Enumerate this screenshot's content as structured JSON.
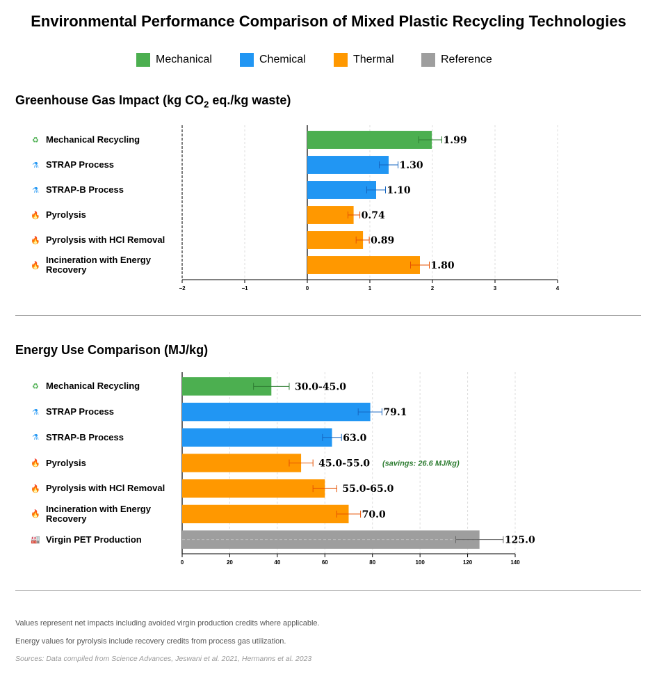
{
  "title": "Environmental Performance Comparison of Mixed Plastic Recycling Technologies",
  "legend": [
    {
      "label": "Mechanical",
      "color": "#4caf50"
    },
    {
      "label": "Chemical",
      "color": "#2196f3"
    },
    {
      "label": "Thermal",
      "color": "#ff9800"
    },
    {
      "label": "Reference",
      "color": "#9e9e9e"
    }
  ],
  "icons": {
    "mechanical": {
      "name": "recycle-icon",
      "glyph": "♻",
      "color": "#4caf50"
    },
    "chemical": {
      "name": "flask-icon",
      "glyph": "⚗",
      "color": "#2196f3"
    },
    "thermal": {
      "name": "flame-icon",
      "glyph": "🔥",
      "color": "#ff9800"
    },
    "reference": {
      "name": "factory-icon",
      "glyph": "🏭",
      "color": "#888888"
    }
  },
  "ghg": {
    "title_main": "Greenhouse Gas Impact (kg CO",
    "title_sub": "2",
    "title_end": " eq./kg waste)"
  },
  "energy": {
    "title": "Energy Use Comparison (MJ/kg)"
  },
  "notes": [
    "Values represent net impacts including avoided virgin production credits where applicable.",
    "Energy values for pyrolysis include recovery credits from process gas utilization."
  ],
  "source": "Sources: Data compiled from Science Advances, Jeswani et al. 2021, Hermanns et al. 2023",
  "chart_data": [
    {
      "type": "bar",
      "orientation": "horizontal",
      "title": "Greenhouse Gas Impact (kg CO2 eq./kg waste)",
      "categories": [
        "Mechanical Recycling",
        "STRAP Process",
        "STRAP-B Process",
        "Pyrolysis",
        "Pyrolysis with HCl Removal",
        "Incineration with Energy Recovery"
      ],
      "groups": [
        "mechanical",
        "chemical",
        "chemical",
        "thermal",
        "thermal",
        "thermal"
      ],
      "values": [
        1.99,
        1.3,
        1.1,
        0.74,
        0.89,
        1.8
      ],
      "error_low": [
        1.78,
        1.15,
        0.95,
        0.65,
        0.78,
        1.65
      ],
      "error_high": [
        2.15,
        1.45,
        1.25,
        0.84,
        0.99,
        1.95
      ],
      "value_labels": [
        "1.99",
        "1.30",
        "1.10",
        "0.74",
        "0.89",
        "1.80"
      ],
      "xlim": [
        -2,
        4
      ],
      "xticks": [
        -2,
        -1,
        0,
        1,
        2,
        3,
        4
      ],
      "xtick_labels": [
        "−2",
        "−1",
        "0",
        "1",
        "2",
        "3",
        "4"
      ],
      "grid": true
    },
    {
      "type": "bar",
      "orientation": "horizontal",
      "title": "Energy Use Comparison (MJ/kg)",
      "categories": [
        "Mechanical Recycling",
        "STRAP Process",
        "STRAP-B Process",
        "Pyrolysis",
        "Pyrolysis with HCl Removal",
        "Incineration with Energy Recovery",
        "Virgin PET Production"
      ],
      "groups": [
        "mechanical",
        "chemical",
        "chemical",
        "thermal",
        "thermal",
        "thermal",
        "reference"
      ],
      "values": [
        37.5,
        79.1,
        63.0,
        50.0,
        60.0,
        70.0,
        125.0
      ],
      "error_low": [
        30,
        74,
        59,
        45,
        55,
        65,
        115
      ],
      "error_high": [
        45,
        84,
        67,
        55,
        65,
        75,
        135
      ],
      "value_labels": [
        "30.0-45.0",
        "79.1",
        "63.0",
        "45.0-55.0",
        "55.0-65.0",
        "70.0",
        "125.0"
      ],
      "annotation": {
        "row": 3,
        "text": "(savings: 26.6 MJ/kg)",
        "color": "#2e7d32"
      },
      "xlim": [
        0,
        140
      ],
      "xticks": [
        0,
        20,
        40,
        60,
        80,
        100,
        120,
        140
      ],
      "xtick_labels": [
        "0",
        "20",
        "40",
        "60",
        "80",
        "100",
        "120",
        "140"
      ],
      "grid": true
    }
  ]
}
